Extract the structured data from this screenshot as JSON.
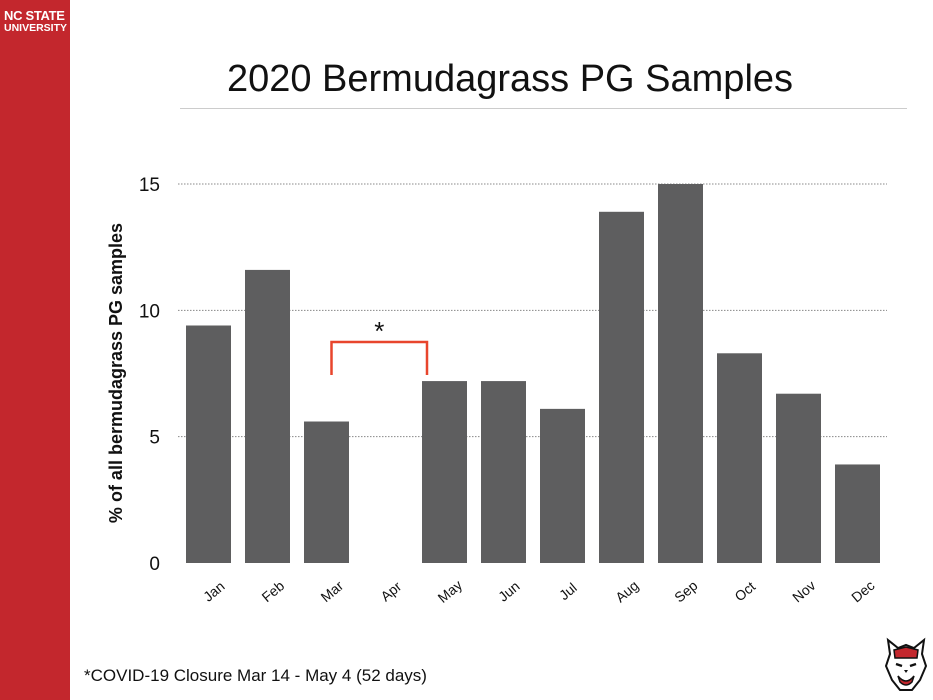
{
  "brand": {
    "line1": "NC STATE",
    "line2": "UNIVERSITY"
  },
  "colors": {
    "sidebar": "#c3272d",
    "bar": "#5e5e5f",
    "bracket": "#e8452c"
  },
  "chart_data": {
    "type": "bar",
    "title": "2020 Bermudagrass PG Samples",
    "xlabel": "",
    "ylabel": "% of all bermudagrass PG samples",
    "categories": [
      "Jan",
      "Feb",
      "Mar",
      "Apr",
      "May",
      "Jun",
      "Jul",
      "Aug",
      "Sep",
      "Oct",
      "Nov",
      "Dec"
    ],
    "values": [
      9.4,
      11.6,
      5.6,
      0,
      7.2,
      7.2,
      6.1,
      13.9,
      15.0,
      8.3,
      6.7,
      3.9
    ],
    "ylim": [
      0,
      15
    ],
    "yticks": [
      0,
      5,
      10,
      15
    ],
    "grid": true,
    "grid_style": "dotted",
    "annotation": {
      "label": "*",
      "from": "Mar",
      "to": "May"
    }
  },
  "footnote": "*COVID-19 Closure Mar 14 - May 4 (52 days)",
  "icons": {
    "logo": "wolf-head-icon"
  }
}
